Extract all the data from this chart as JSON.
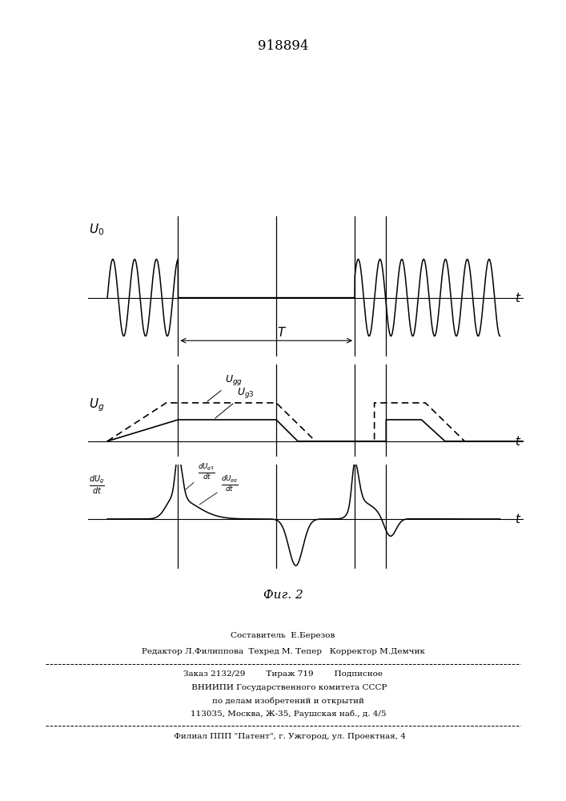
{
  "title": "918894",
  "background_color": "#ffffff",
  "line_color": "#000000",
  "page_text": {
    "line1": "Составитель  Е.Березов",
    "line2": "Редактор Л.Филиппова  Техред М. Тепер   Корректор М.Демчик",
    "line3": "Заказ 2132/29        Тираж 719        Подписное",
    "line4": "     ВНИИПИ Государственного комитета СССР",
    "line5": "    по делам изобретений и открытий",
    "line6": "    113035, Москва, Ж-35, Раушская наб., д. 4/5",
    "line7": "     Филиал ППП \"Патент\", г. Ужгород, ул. Проектная, 4"
  },
  "v1": 1.8,
  "v2": 4.3,
  "v3": 6.3,
  "v4": 7.1,
  "T_total": 10.0,
  "sine_freq": 1.8,
  "sine_amplitude": 0.85
}
